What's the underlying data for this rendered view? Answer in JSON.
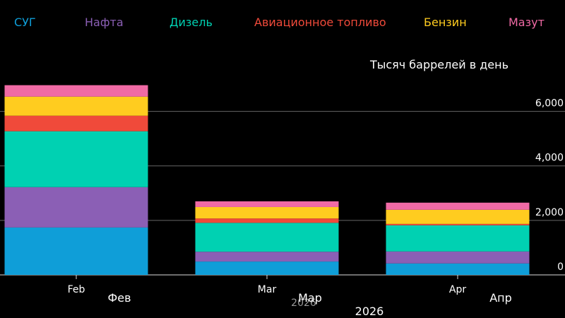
{
  "chart_data": {
    "type": "stacked-bar",
    "y_axis_title": "Тысяч баррелей в день",
    "categories": [
      "Feb",
      "Mar",
      "Apr"
    ],
    "categories_ru": [
      "Фев",
      "Мар",
      "Апр"
    ],
    "x_year": "2026",
    "x_year_ru": "2026",
    "series": [
      {
        "name": "СУГ",
        "color": "#0f9ed8",
        "values": [
          1740,
          490,
          420
        ]
      },
      {
        "name": "Нафта",
        "color": "#8b5fb5",
        "values": [
          1480,
          360,
          440
        ]
      },
      {
        "name": "Дизель",
        "color": "#00d1b2",
        "values": [
          2050,
          1060,
          960
        ]
      },
      {
        "name": "Авиационное топливо",
        "color": "#f04a3a",
        "values": [
          570,
          160,
          50
        ]
      },
      {
        "name": "Бензин",
        "color": "#ffcc1f",
        "values": [
          700,
          420,
          520
        ]
      },
      {
        "name": "Мазут",
        "color": "#f06aa5",
        "values": [
          420,
          210,
          260
        ]
      }
    ],
    "ylim": [
      0,
      7000
    ],
    "yticks": [
      0,
      {
        "value": 2000,
        "label": "2,000"
      },
      {
        "value": 4000,
        "label": "4,000"
      },
      {
        "value": 6000,
        "label": "6,000"
      }
    ],
    "grid": true
  }
}
